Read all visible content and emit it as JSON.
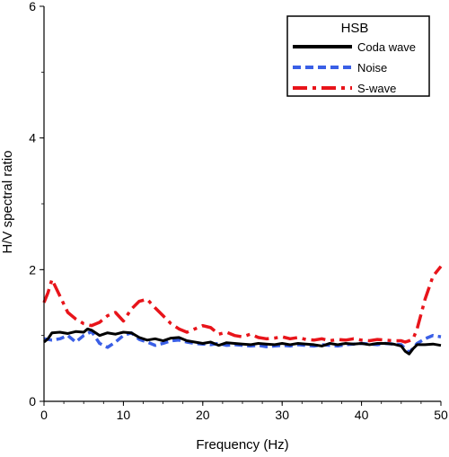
{
  "chart_data": {
    "type": "line",
    "title": "",
    "xlabel": "Frequency (Hz)",
    "ylabel": "H/V spectral ratio",
    "xlim": [
      0,
      50
    ],
    "ylim": [
      0,
      6
    ],
    "xticks": [
      0,
      10,
      20,
      30,
      40,
      50
    ],
    "yticks": [
      0,
      2,
      4,
      6
    ],
    "grid": false,
    "legend": {
      "title": "HSB",
      "placement": "top-right"
    },
    "series": [
      {
        "name": "Coda wave",
        "color": "#000000",
        "style": "solid",
        "x": [
          0,
          0.5,
          1,
          2,
          3,
          4,
          5,
          5.5,
          6,
          7,
          8,
          9,
          10,
          11,
          12,
          13,
          14,
          15,
          16,
          17,
          18,
          19,
          20,
          21,
          22,
          23,
          24,
          25,
          26,
          27,
          28,
          29,
          30,
          31,
          32,
          33,
          34,
          35,
          36,
          37,
          38,
          39,
          40,
          41,
          42,
          43,
          44,
          45,
          45.5,
          46,
          46.5,
          47,
          48,
          49,
          50
        ],
        "values": [
          0.9,
          0.95,
          1.04,
          1.05,
          1.03,
          1.06,
          1.05,
          1.1,
          1.08,
          1.0,
          1.04,
          1.02,
          1.05,
          1.04,
          0.97,
          0.93,
          0.95,
          0.92,
          0.96,
          0.97,
          0.92,
          0.9,
          0.88,
          0.9,
          0.85,
          0.89,
          0.88,
          0.87,
          0.86,
          0.88,
          0.87,
          0.86,
          0.88,
          0.86,
          0.88,
          0.87,
          0.86,
          0.84,
          0.88,
          0.86,
          0.88,
          0.87,
          0.88,
          0.86,
          0.88,
          0.88,
          0.87,
          0.84,
          0.76,
          0.72,
          0.8,
          0.86,
          0.86,
          0.87,
          0.85
        ]
      },
      {
        "name": "Noise",
        "color": "#3a5fe6",
        "style": "dashed",
        "x": [
          0,
          1,
          2,
          3,
          4,
          5,
          6,
          7,
          8,
          9,
          10,
          11,
          12,
          13,
          14,
          15,
          16,
          17,
          18,
          19,
          20,
          21,
          22,
          23,
          24,
          25,
          26,
          27,
          28,
          29,
          30,
          31,
          32,
          33,
          34,
          35,
          36,
          37,
          38,
          39,
          40,
          41,
          42,
          43,
          44,
          45,
          46,
          47,
          48,
          49,
          50
        ],
        "values": [
          0.95,
          0.93,
          0.95,
          1.0,
          0.9,
          1.0,
          1.06,
          0.88,
          0.82,
          0.9,
          1.0,
          1.04,
          0.94,
          0.9,
          0.85,
          0.88,
          0.92,
          0.93,
          0.9,
          0.88,
          0.87,
          0.86,
          0.88,
          0.85,
          0.86,
          0.85,
          0.84,
          0.85,
          0.83,
          0.84,
          0.85,
          0.84,
          0.86,
          0.85,
          0.84,
          0.86,
          0.85,
          0.84,
          0.86,
          0.87,
          0.88,
          0.87,
          0.86,
          0.88,
          0.87,
          0.86,
          0.74,
          0.88,
          0.95,
          1.0,
          0.98
        ]
      },
      {
        "name": "S-wave",
        "color": "#e8141a",
        "style": "dashdot",
        "x": [
          0,
          0.5,
          1,
          2,
          3,
          4,
          5,
          6,
          7,
          8,
          9,
          10,
          11,
          12,
          13,
          14,
          15,
          16,
          17,
          18,
          19,
          20,
          21,
          22,
          23,
          24,
          25,
          26,
          27,
          28,
          29,
          30,
          31,
          32,
          33,
          34,
          35,
          36,
          37,
          38,
          39,
          40,
          41,
          42,
          43,
          44,
          45,
          45.5,
          46,
          46.5,
          47,
          48,
          49,
          50
        ],
        "values": [
          1.5,
          1.65,
          1.85,
          1.6,
          1.35,
          1.25,
          1.18,
          1.15,
          1.2,
          1.3,
          1.35,
          1.22,
          1.4,
          1.52,
          1.55,
          1.42,
          1.3,
          1.18,
          1.1,
          1.05,
          1.1,
          1.15,
          1.12,
          1.02,
          1.05,
          1.0,
          0.98,
          1.02,
          0.97,
          0.95,
          0.96,
          0.98,
          0.95,
          0.97,
          0.94,
          0.93,
          0.95,
          0.92,
          0.94,
          0.93,
          0.95,
          0.93,
          0.92,
          0.94,
          0.93,
          0.92,
          0.92,
          0.9,
          0.92,
          0.95,
          1.1,
          1.55,
          1.9,
          2.05
        ]
      }
    ]
  }
}
